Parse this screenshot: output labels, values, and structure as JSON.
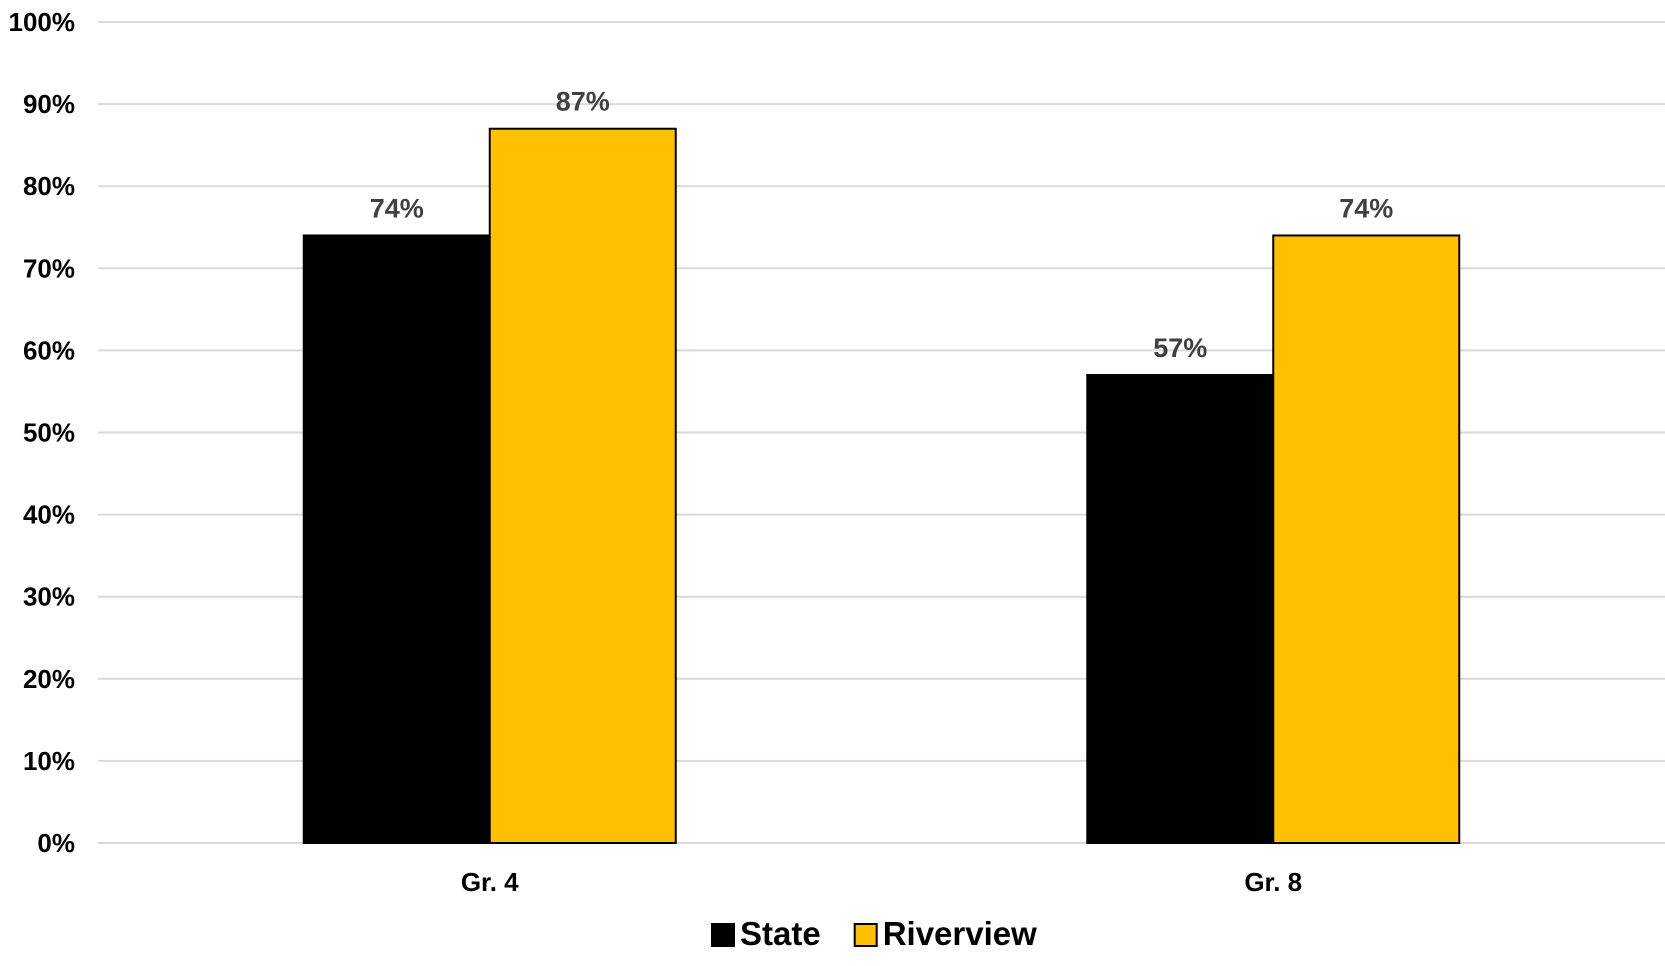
{
  "chart_data": {
    "type": "bar",
    "title": "",
    "xlabel": "",
    "ylabel": "",
    "categories": [
      "Gr. 4",
      "Gr. 8"
    ],
    "series": [
      {
        "name": "State",
        "values": [
          74,
          57
        ],
        "labels": [
          "74%",
          "57%"
        ],
        "color": "#000000"
      },
      {
        "name": "Riverview",
        "values": [
          87,
          74
        ],
        "labels": [
          "87%",
          "74%"
        ],
        "color": "#FFC000"
      }
    ],
    "ylim": [
      0,
      100
    ],
    "yticks": [
      0,
      10,
      20,
      30,
      40,
      50,
      60,
      70,
      80,
      90,
      100
    ],
    "ytick_labels": [
      "0%",
      "10%",
      "20%",
      "30%",
      "40%",
      "50%",
      "60%",
      "70%",
      "80%",
      "90%",
      "100%"
    ],
    "grid": true,
    "legend_position": "bottom-center",
    "colors": {
      "gridline": "#D9D9D9",
      "data_label": "#404040"
    }
  }
}
